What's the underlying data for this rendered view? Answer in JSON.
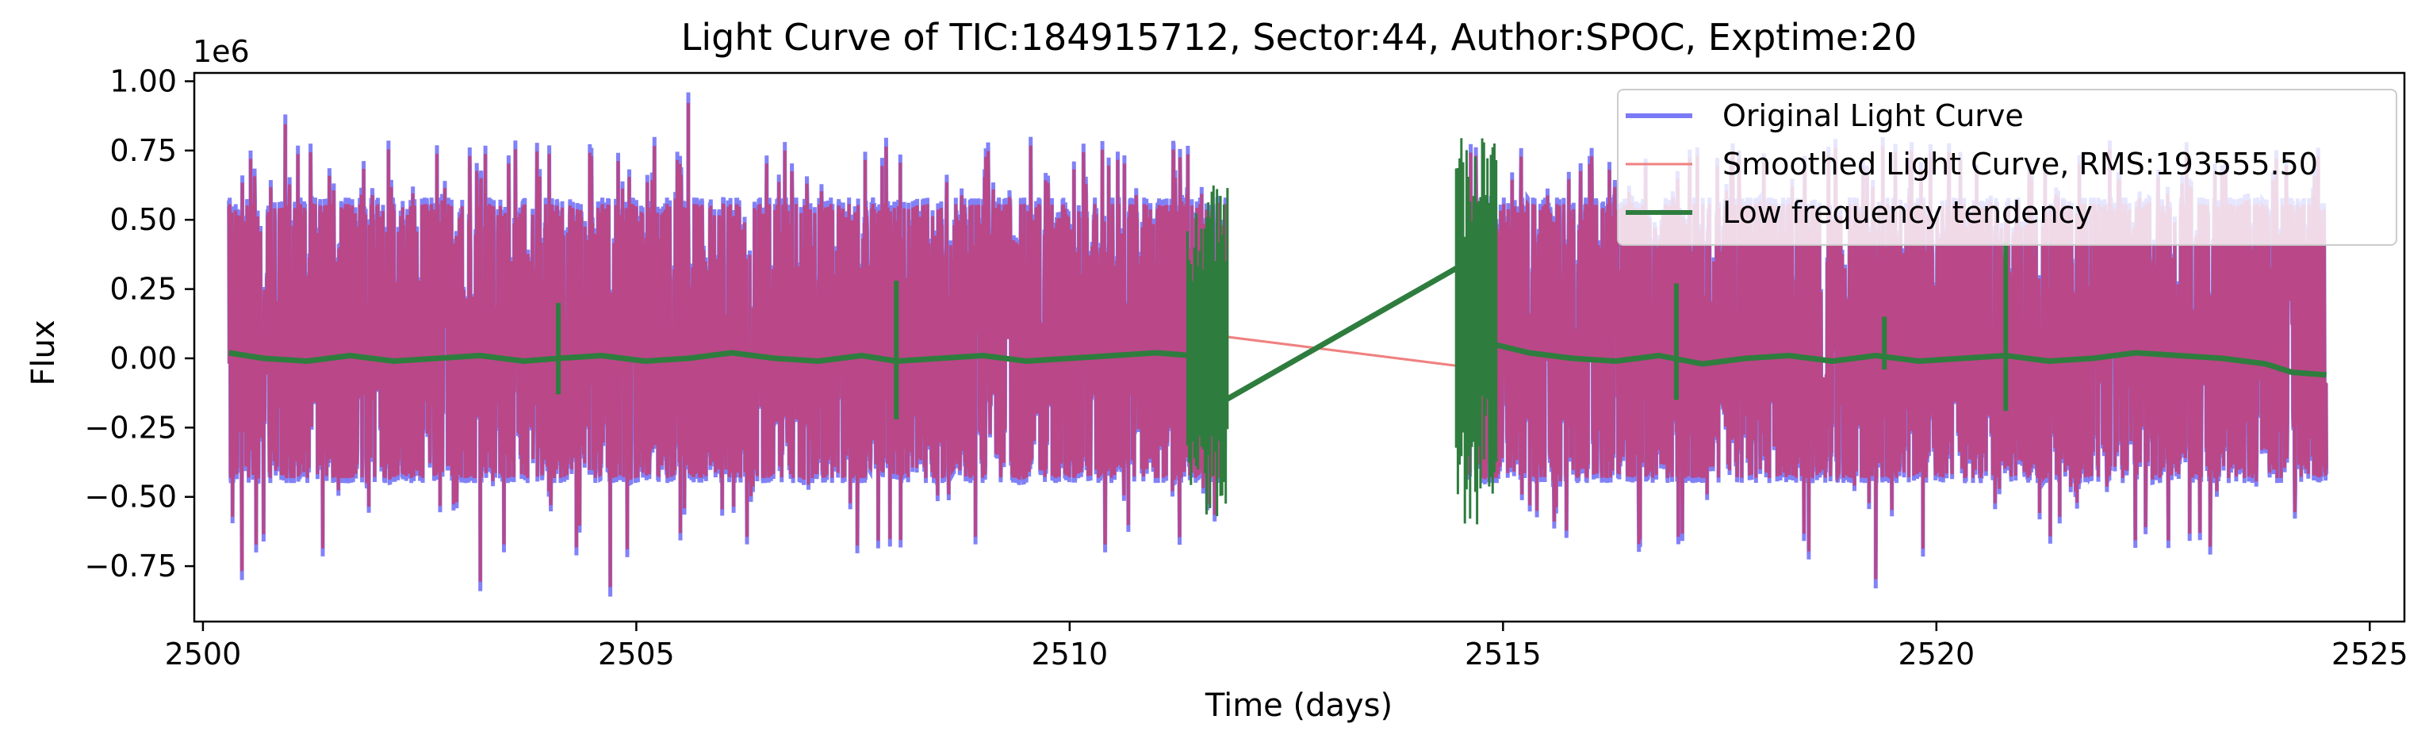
{
  "chart_data": {
    "type": "line",
    "title": "Light Curve of TIC:184915712, Sector:44, Author:SPOC, Exptime:20",
    "xlabel": "Time (days)",
    "ylabel": "Flux",
    "y_offset_text": "1e6",
    "xlim": [
      2499.9,
      2525.4
    ],
    "ylim": [
      -0.95,
      1.03
    ],
    "y_scale_factor": 1000000,
    "x_ticks": [
      2500,
      2505,
      2510,
      2515,
      2520,
      2525
    ],
    "x_tick_labels": [
      "2500",
      "2505",
      "2510",
      "2515",
      "2520",
      "2525"
    ],
    "y_ticks": [
      1.0,
      0.75,
      0.5,
      0.25,
      0.0,
      -0.25,
      -0.5,
      -0.75
    ],
    "y_tick_labels": [
      "1.00",
      "0.75",
      "0.50",
      "0.25",
      "0.00",
      "−0.25",
      "−0.50",
      "−0.75"
    ],
    "grid": false,
    "legend_position": "top-right",
    "segments": [
      [
        2500.3,
        2511.8
      ],
      [
        2514.6,
        2524.5
      ]
    ],
    "series": [
      {
        "name": "Original Light Curve",
        "color": "#7a7af7",
        "description_values": {
          "typical_range": [
            -0.45,
            0.58
          ],
          "peaks": [
            [
              2500.55,
              0.75
            ],
            [
              2500.95,
              0.88
            ],
            [
              2505.6,
              0.96
            ],
            [
              2511.2,
              0.77
            ],
            [
              2516.0,
              0.73
            ]
          ],
          "dips": [
            [
              2500.45,
              -0.8
            ],
            [
              2503.2,
              -0.84
            ],
            [
              2504.7,
              -0.86
            ],
            [
              2519.3,
              -0.83
            ]
          ]
        }
      },
      {
        "name": "Smoothed Light Curve, RMS:193555.50",
        "color": "#f08080",
        "points": [
          [
            2511.5,
            0.09
          ],
          [
            2514.8,
            -0.04
          ]
        ]
      },
      {
        "name": "Low frequency tendency",
        "color": "#2e7d3e",
        "points": [
          [
            2500.3,
            0.02
          ],
          [
            2500.7,
            0.0
          ],
          [
            2501.2,
            -0.01
          ],
          [
            2501.7,
            0.01
          ],
          [
            2502.2,
            -0.01
          ],
          [
            2502.7,
            0.0
          ],
          [
            2503.2,
            0.01
          ],
          [
            2503.7,
            -0.01
          ],
          [
            2504.1,
            0.0
          ],
          [
            2504.6,
            0.01
          ],
          [
            2505.1,
            -0.01
          ],
          [
            2505.6,
            0.0
          ],
          [
            2506.1,
            0.02
          ],
          [
            2506.6,
            0.0
          ],
          [
            2507.1,
            -0.01
          ],
          [
            2507.6,
            0.01
          ],
          [
            2508.0,
            -0.01
          ],
          [
            2508.5,
            0.0
          ],
          [
            2509.0,
            0.01
          ],
          [
            2509.5,
            -0.01
          ],
          [
            2510.0,
            0.0
          ],
          [
            2510.5,
            0.01
          ],
          [
            2511.0,
            0.02
          ],
          [
            2511.4,
            0.01
          ],
          [
            2511.8,
            -0.15
          ],
          [
            2514.6,
            0.35
          ],
          [
            2514.9,
            0.05
          ],
          [
            2515.3,
            0.02
          ],
          [
            2515.8,
            0.0
          ],
          [
            2516.3,
            -0.01
          ],
          [
            2516.8,
            0.01
          ],
          [
            2517.3,
            -0.02
          ],
          [
            2517.8,
            0.0
          ],
          [
            2518.3,
            0.01
          ],
          [
            2518.8,
            -0.01
          ],
          [
            2519.3,
            0.01
          ],
          [
            2519.8,
            -0.01
          ],
          [
            2520.3,
            0.0
          ],
          [
            2520.8,
            0.01
          ],
          [
            2521.3,
            -0.01
          ],
          [
            2521.8,
            0.0
          ],
          [
            2522.3,
            0.02
          ],
          [
            2522.8,
            0.01
          ],
          [
            2523.3,
            0.0
          ],
          [
            2523.8,
            -0.02
          ],
          [
            2524.1,
            -0.05
          ],
          [
            2524.5,
            -0.06
          ]
        ],
        "spikes": [
          [
            2504.1,
            -0.13,
            0.2
          ],
          [
            2508.0,
            -0.22,
            0.28
          ],
          [
            2517.0,
            -0.15,
            0.27
          ],
          [
            2519.4,
            -0.04,
            0.15
          ],
          [
            2520.8,
            -0.19,
            0.42
          ],
          [
            2511.5,
            -0.55,
            0.55
          ],
          [
            2511.7,
            -0.6,
            0.65
          ],
          [
            2514.6,
            -0.6,
            0.8
          ],
          [
            2514.8,
            -0.5,
            0.85
          ]
        ]
      }
    ]
  }
}
